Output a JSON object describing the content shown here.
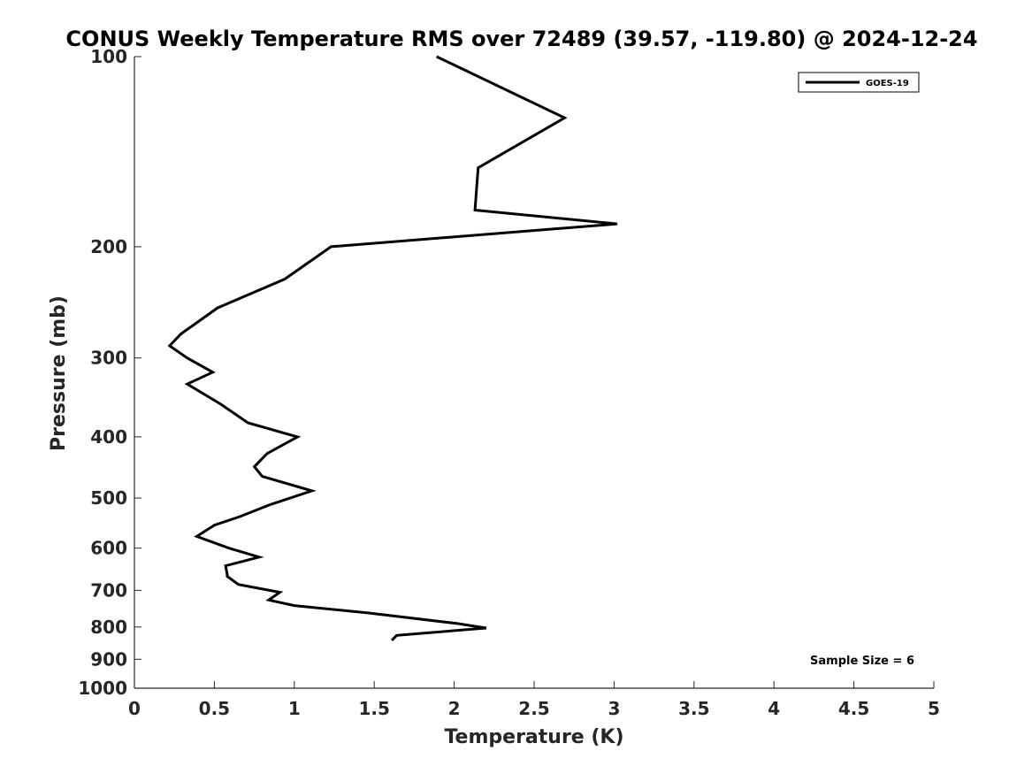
{
  "chart_data": {
    "type": "line",
    "title": "CONUS Weekly Temperature RMS over 72489 (39.57, -119.80) @ 2024-12-24",
    "xlabel": "Temperature (K)",
    "ylabel": "Pressure (mb)",
    "xlim": [
      0,
      5
    ],
    "ylim": [
      1000,
      100
    ],
    "y_scale": "log",
    "y_reversed": true,
    "x_ticks": [
      "0",
      "0.5",
      "1",
      "1.5",
      "2",
      "2.5",
      "3",
      "3.5",
      "4",
      "4.5",
      "5"
    ],
    "y_ticks": [
      "100",
      "200",
      "300",
      "400",
      "500",
      "600",
      "700",
      "800",
      "900",
      "1000"
    ],
    "grid": false,
    "legend_position": "top-right",
    "series": [
      {
        "name": "GOES-19",
        "color": "#000000",
        "points": [
          [
            1.89,
            100
          ],
          [
            2.69,
            125
          ],
          [
            2.15,
            150
          ],
          [
            2.13,
            175
          ],
          [
            3.02,
            184
          ],
          [
            1.23,
            200
          ],
          [
            0.94,
            225
          ],
          [
            0.52,
            250
          ],
          [
            0.29,
            275
          ],
          [
            0.22,
            287
          ],
          [
            0.33,
            300
          ],
          [
            0.49,
            316
          ],
          [
            0.33,
            330
          ],
          [
            0.54,
            355
          ],
          [
            0.71,
            380
          ],
          [
            1.02,
            400
          ],
          [
            0.83,
            425
          ],
          [
            0.75,
            446
          ],
          [
            0.8,
            462
          ],
          [
            1.11,
            487
          ],
          [
            0.85,
            512
          ],
          [
            0.66,
            535
          ],
          [
            0.5,
            552
          ],
          [
            0.39,
            575
          ],
          [
            0.59,
            600
          ],
          [
            0.78,
            620
          ],
          [
            0.57,
            640
          ],
          [
            0.58,
            660
          ],
          [
            0.58,
            665
          ],
          [
            0.65,
            685
          ],
          [
            0.91,
            705
          ],
          [
            0.84,
            725
          ],
          [
            1.0,
            740
          ],
          [
            1.46,
            760
          ],
          [
            2.02,
            790
          ],
          [
            2.2,
            803
          ],
          [
            1.64,
            825
          ],
          [
            1.61,
            840
          ]
        ]
      }
    ],
    "annotations": [
      "Sample Size = 6"
    ]
  }
}
